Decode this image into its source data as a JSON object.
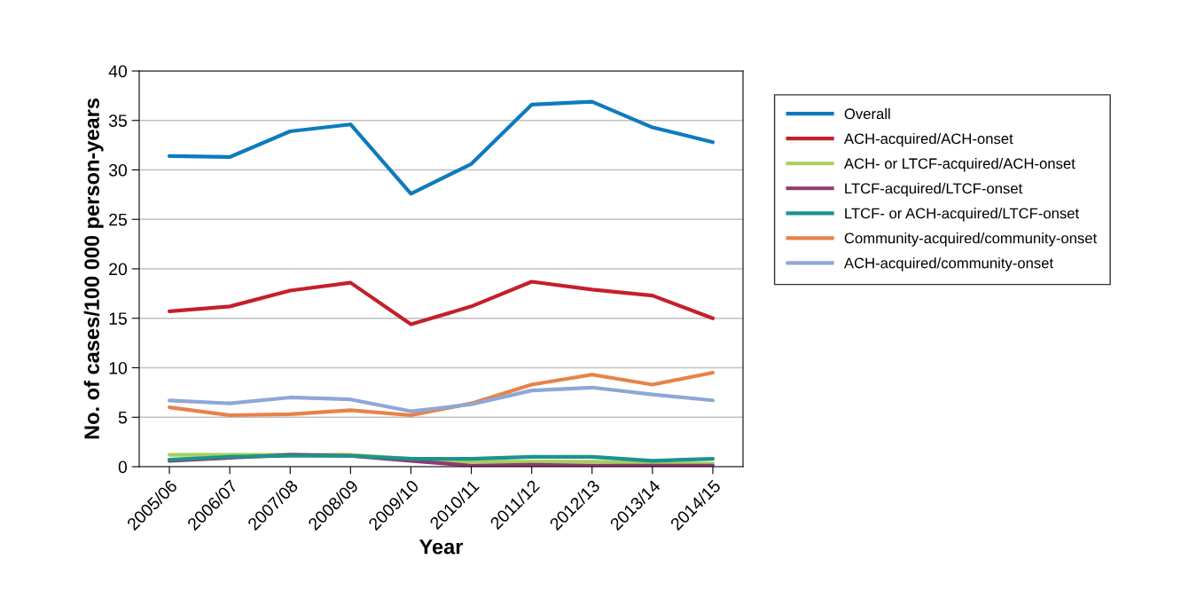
{
  "chart_data": {
    "type": "line",
    "xlabel": "Year",
    "ylabel": "No. of cases/100 000 person-years",
    "categories": [
      "2005/06",
      "2006/07",
      "2007/08",
      "2008/09",
      "2009/10",
      "2010/11",
      "2011/12",
      "2012/13",
      "2013/14",
      "2014/15"
    ],
    "series": [
      {
        "name": "Overall",
        "color": "#0e7bbd",
        "values": [
          31.4,
          31.3,
          33.9,
          34.6,
          27.6,
          30.6,
          36.6,
          36.9,
          34.3,
          32.8
        ]
      },
      {
        "name": "ACH-acquired/ACH-onset",
        "color": "#c4202b",
        "values": [
          15.7,
          16.2,
          17.8,
          18.6,
          14.4,
          16.2,
          18.7,
          17.9,
          17.3,
          15.0
        ]
      },
      {
        "name": "ACH- or LTCF-acquired/ACH-onset",
        "color": "#a6cf5d",
        "values": [
          1.2,
          1.2,
          1.2,
          1.2,
          0.8,
          0.5,
          0.5,
          0.5,
          0.4,
          0.3
        ]
      },
      {
        "name": "LTCF-acquired/LTCF-onset",
        "color": "#8e3a73",
        "values": [
          0.6,
          0.9,
          1.2,
          1.1,
          0.6,
          0.1,
          0.2,
          0.1,
          0.1,
          0.1
        ]
      },
      {
        "name": "LTCF- or ACH-acquired/LTCF-onset",
        "color": "#1a948c",
        "values": [
          0.7,
          1.0,
          1.1,
          1.1,
          0.8,
          0.8,
          1.0,
          1.0,
          0.6,
          0.8
        ]
      },
      {
        "name": "Community-acquired/community-onset",
        "color": "#e8824a",
        "values": [
          6.0,
          5.2,
          5.3,
          5.7,
          5.2,
          6.4,
          8.3,
          9.3,
          8.3,
          9.5
        ]
      },
      {
        "name": "ACH-acquired/community-onset",
        "color": "#8ea7d6",
        "values": [
          6.7,
          6.4,
          7.0,
          6.8,
          5.6,
          6.3,
          7.7,
          8.0,
          7.3,
          6.7
        ]
      }
    ],
    "ylim": [
      0,
      40
    ],
    "yticks": [
      0,
      5,
      10,
      15,
      20,
      25,
      30,
      35,
      40
    ],
    "grid": "y",
    "legend": "right",
    "marker": "none",
    "line_style": "solid"
  }
}
